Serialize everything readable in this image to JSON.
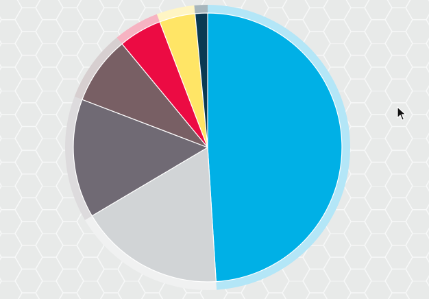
{
  "chart_data": {
    "type": "pie",
    "title": "",
    "legend": "none",
    "start_angle_deg": 0,
    "direction": "clockwise",
    "slices": [
      {
        "value": 49.0,
        "color": "#00b0e6",
        "ring_color": "#b3e6f7"
      },
      {
        "value": 17.5,
        "color": "#d1d4d6",
        "ring_color": "#f0f1f1"
      },
      {
        "value": 14.3,
        "color": "#706a74",
        "ring_color": "#dddbdd"
      },
      {
        "value": 8.2,
        "color": "#785f64",
        "ring_color": "#d7cfd0"
      },
      {
        "value": 5.2,
        "color": "#ec0b43",
        "ring_color": "#f6b3c2"
      },
      {
        "value": 4.3,
        "color": "#ffe566",
        "ring_color": "#fff5c4"
      },
      {
        "value": 1.5,
        "color": "#0a3a53",
        "ring_color": "#a8b6bc"
      }
    ]
  },
  "background": {
    "color": "#e8eae9",
    "pattern": "hexagon-grid"
  },
  "icons": {
    "cursor": "mouse-pointer-icon"
  }
}
